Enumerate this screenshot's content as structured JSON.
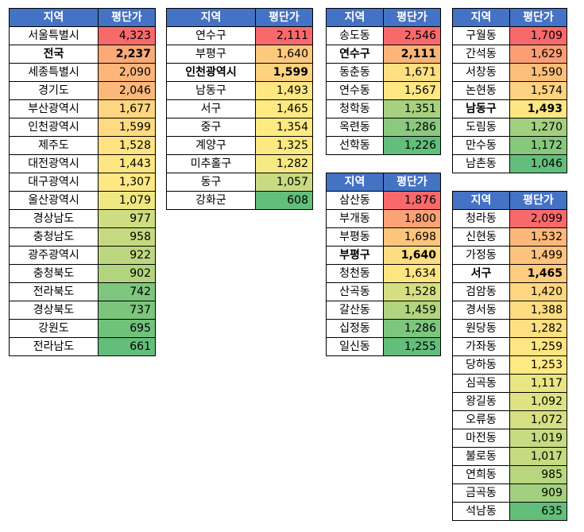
{
  "header": {
    "region": "지역",
    "price": "평단가"
  },
  "tables": [
    {
      "id": "nation",
      "rows": [
        {
          "name": "서울특별시",
          "value": "4,323",
          "color": "#f8696b",
          "bold": false
        },
        {
          "name": "전국",
          "value": "2,237",
          "color": "#fbaa77",
          "bold": true
        },
        {
          "name": "세종특별시",
          "value": "2,090",
          "color": "#fcb57a",
          "bold": false
        },
        {
          "name": "경기도",
          "value": "2,046",
          "color": "#fcb87b",
          "bold": false
        },
        {
          "name": "부산광역시",
          "value": "1,677",
          "color": "#fed580",
          "bold": false
        },
        {
          "name": "인천광역시",
          "value": "1,599",
          "color": "#fedb81",
          "bold": false
        },
        {
          "name": "제주도",
          "value": "1,528",
          "color": "#ffe283",
          "bold": false
        },
        {
          "name": "대전광역시",
          "value": "1,443",
          "color": "#fee783",
          "bold": false
        },
        {
          "name": "대구광역시",
          "value": "1,307",
          "color": "#fee883",
          "bold": false
        },
        {
          "name": "울산광역시",
          "value": "1,079",
          "color": "#f0e783",
          "bold": false
        },
        {
          "name": "경상남도",
          "value": "977",
          "color": "#cedd82",
          "bold": false
        },
        {
          "name": "충청남도",
          "value": "958",
          "color": "#c5da80",
          "bold": false
        },
        {
          "name": "광주광역시",
          "value": "922",
          "color": "#bcd780",
          "bold": false
        },
        {
          "name": "충청북도",
          "value": "902",
          "color": "#b2d47f",
          "bold": false
        },
        {
          "name": "전라북도",
          "value": "742",
          "color": "#7ec67d",
          "bold": false
        },
        {
          "name": "경상북도",
          "value": "737",
          "color": "#7cc67c",
          "bold": false
        },
        {
          "name": "강원도",
          "value": "695",
          "color": "#70c27b",
          "bold": false
        },
        {
          "name": "전라남도",
          "value": "661",
          "color": "#63be7b",
          "bold": false
        }
      ]
    },
    {
      "id": "incheon",
      "rows": [
        {
          "name": "연수구",
          "value": "2,111",
          "color": "#f8696b",
          "bold": false
        },
        {
          "name": "부평구",
          "value": "1,640",
          "color": "#fdc97d",
          "bold": false
        },
        {
          "name": "인천광역시",
          "value": "1,599",
          "color": "#fed280",
          "bold": true
        },
        {
          "name": "남동구",
          "value": "1,493",
          "color": "#fee783",
          "bold": false
        },
        {
          "name": "서구",
          "value": "1,465",
          "color": "#fee983",
          "bold": false
        },
        {
          "name": "중구",
          "value": "1,354",
          "color": "#feea83",
          "bold": false
        },
        {
          "name": "계양구",
          "value": "1,325",
          "color": "#fde982",
          "bold": false
        },
        {
          "name": "미추홀구",
          "value": "1,282",
          "color": "#f6e883",
          "bold": false
        },
        {
          "name": "동구",
          "value": "1,057",
          "color": "#c9db81",
          "bold": false
        },
        {
          "name": "강화군",
          "value": "608",
          "color": "#63be7b",
          "bold": false
        }
      ]
    },
    {
      "id": "yeonsu",
      "rows": [
        {
          "name": "송도동",
          "value": "2,546",
          "color": "#f8696b",
          "bold": false
        },
        {
          "name": "연수구",
          "value": "2,111",
          "color": "#fbb579",
          "bold": true
        },
        {
          "name": "동춘동",
          "value": "1,671",
          "color": "#fedf82",
          "bold": false
        },
        {
          "name": "연수동",
          "value": "1,567",
          "color": "#fee883",
          "bold": false
        },
        {
          "name": "청학동",
          "value": "1,351",
          "color": "#a7d17f",
          "bold": false
        },
        {
          "name": "옥련동",
          "value": "1,286",
          "color": "#8ac97e",
          "bold": false
        },
        {
          "name": "선학동",
          "value": "1,226",
          "color": "#63be7b",
          "bold": false
        }
      ]
    },
    {
      "id": "bupyeong",
      "rows": [
        {
          "name": "삼산동",
          "value": "1,876",
          "color": "#f8696b",
          "bold": false
        },
        {
          "name": "부개동",
          "value": "1,800",
          "color": "#fba276",
          "bold": false
        },
        {
          "name": "부평동",
          "value": "1,698",
          "color": "#fdc47c",
          "bold": false
        },
        {
          "name": "부평구",
          "value": "1,640",
          "color": "#fedc81",
          "bold": true
        },
        {
          "name": "청천동",
          "value": "1,634",
          "color": "#fee583",
          "bold": false
        },
        {
          "name": "산곡동",
          "value": "1,528",
          "color": "#d5df82",
          "bold": false
        },
        {
          "name": "갈산동",
          "value": "1,459",
          "color": "#b1d47f",
          "bold": false
        },
        {
          "name": "십정동",
          "value": "1,286",
          "color": "#7dc67d",
          "bold": false
        },
        {
          "name": "일신동",
          "value": "1,255",
          "color": "#63be7b",
          "bold": false
        }
      ]
    },
    {
      "id": "namdong",
      "rows": [
        {
          "name": "구월동",
          "value": "1,709",
          "color": "#f8696b",
          "bold": false
        },
        {
          "name": "간석동",
          "value": "1,629",
          "color": "#fb9e75",
          "bold": false
        },
        {
          "name": "서창동",
          "value": "1,590",
          "color": "#fdbe7b",
          "bold": false
        },
        {
          "name": "논현동",
          "value": "1,574",
          "color": "#fed280",
          "bold": false
        },
        {
          "name": "남동구",
          "value": "1,493",
          "color": "#fee783",
          "bold": true
        },
        {
          "name": "도림동",
          "value": "1,270",
          "color": "#a3d07f",
          "bold": false
        },
        {
          "name": "만수동",
          "value": "1,172",
          "color": "#86c97d",
          "bold": false
        },
        {
          "name": "남촌동",
          "value": "1,046",
          "color": "#63be7b",
          "bold": false
        }
      ]
    },
    {
      "id": "seogu",
      "rows": [
        {
          "name": "청라동",
          "value": "2,099",
          "color": "#f8696b",
          "bold": false
        },
        {
          "name": "신현동",
          "value": "1,532",
          "color": "#fcb77a",
          "bold": false
        },
        {
          "name": "가정동",
          "value": "1,499",
          "color": "#fdc27c",
          "bold": false
        },
        {
          "name": "서구",
          "value": "1,465",
          "color": "#fdcc7e",
          "bold": true
        },
        {
          "name": "검암동",
          "value": "1,420",
          "color": "#fed580",
          "bold": false
        },
        {
          "name": "경서동",
          "value": "1,388",
          "color": "#fedc81",
          "bold": false
        },
        {
          "name": "원당동",
          "value": "1,282",
          "color": "#fee082",
          "bold": false
        },
        {
          "name": "가좌동",
          "value": "1,259",
          "color": "#fee583",
          "bold": false
        },
        {
          "name": "당하동",
          "value": "1,253",
          "color": "#feea83",
          "bold": false
        },
        {
          "name": "심곡동",
          "value": "1,117",
          "color": "#eae583",
          "bold": false
        },
        {
          "name": "왕길동",
          "value": "1,092",
          "color": "#dfe283",
          "bold": false
        },
        {
          "name": "오류동",
          "value": "1,072",
          "color": "#d6df82",
          "bold": false
        },
        {
          "name": "마전동",
          "value": "1,019",
          "color": "#c7db81",
          "bold": false
        },
        {
          "name": "불로동",
          "value": "1,017",
          "color": "#c6da81",
          "bold": false
        },
        {
          "name": "연희동",
          "value": "985",
          "color": "#b8d67f",
          "bold": false
        },
        {
          "name": "금곡동",
          "value": "909",
          "color": "#a3d07f",
          "bold": false
        },
        {
          "name": "석남동",
          "value": "635",
          "color": "#63be7b",
          "bold": false
        }
      ]
    }
  ]
}
